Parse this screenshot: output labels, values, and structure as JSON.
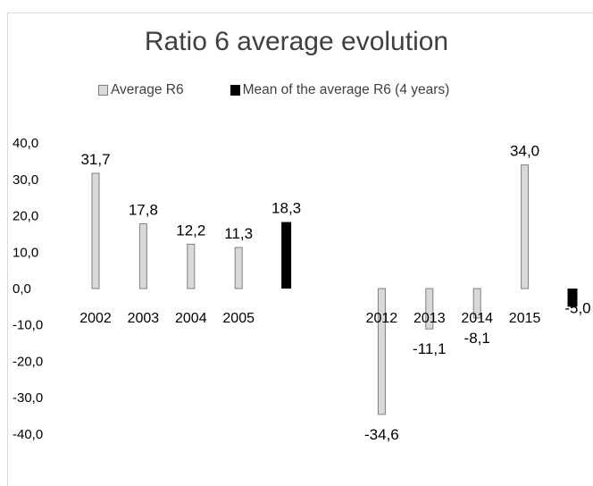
{
  "chart_data": {
    "type": "bar",
    "title": "Ratio 6 average evolution",
    "categories": [
      "2002",
      "2003",
      "2004",
      "2005",
      "",
      "",
      "2012",
      "2013",
      "2014",
      "2015",
      ""
    ],
    "series": [
      {
        "name": "Average R6",
        "color": "#d9d9d9",
        "values": [
          31.7,
          17.8,
          12.2,
          11.3,
          null,
          null,
          -34.6,
          -11.1,
          -8.1,
          34.0,
          null
        ],
        "labels": [
          "31,7",
          "17,8",
          "12,2",
          "11,3",
          null,
          null,
          "-34,6",
          "-11,1",
          "-8,1",
          "34,0",
          null
        ]
      },
      {
        "name": "Mean of the average R6 (4 years)",
        "color": "#000000",
        "values": [
          null,
          null,
          null,
          null,
          18.3,
          null,
          null,
          null,
          null,
          null,
          -5.0
        ],
        "labels": [
          null,
          null,
          null,
          null,
          "18,3",
          null,
          null,
          null,
          null,
          null,
          "-5,0"
        ]
      }
    ],
    "yticks": [
      40,
      30,
      20,
      10,
      0,
      -10,
      -20,
      -30,
      -40
    ],
    "ytick_labels": [
      "40,0",
      "30,0",
      "20,0",
      "10,0",
      "0,0",
      "-10,0",
      "-20,0",
      "-30,0",
      "-40,0"
    ],
    "ylim": [
      -40,
      40
    ],
    "grid": false,
    "legend_position": "top"
  }
}
